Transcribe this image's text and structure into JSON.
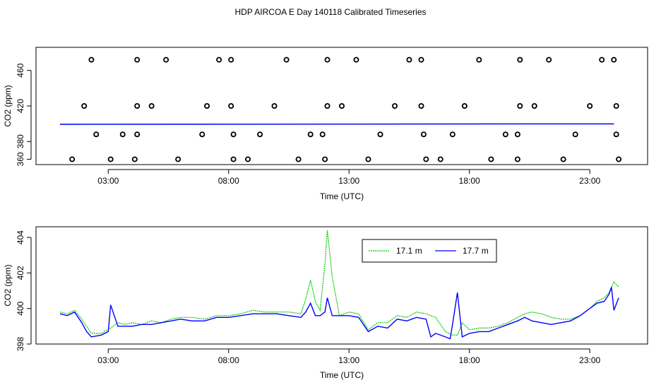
{
  "title": "HDP AIRCOA E  Day 140118  Calibrated Timeseries",
  "colors": {
    "series1": "#00c800",
    "series2": "#0000ff",
    "points": "#000000"
  },
  "chart_data": [
    {
      "type": "scatter",
      "xlabel": "Time (UTC)",
      "ylabel": "CO2 (ppm)",
      "x_ticks": [
        "03:00",
        "08:00",
        "13:00",
        "18:00",
        "23:00"
      ],
      "y_ticks": [
        "360",
        "380",
        "420",
        "460"
      ],
      "xlim": [
        0.0,
        25.4
      ],
      "ylim": [
        354,
        486
      ],
      "grid": false,
      "calibration_points": [
        {
          "x": 1.5,
          "y": 360
        },
        {
          "x": 2.3,
          "y": 472
        },
        {
          "x": 2.0,
          "y": 420
        },
        {
          "x": 2.5,
          "y": 388
        },
        {
          "x": 3.1,
          "y": 360
        },
        {
          "x": 3.6,
          "y": 388
        },
        {
          "x": 4.1,
          "y": 360
        },
        {
          "x": 4.2,
          "y": 388
        },
        {
          "x": 4.2,
          "y": 420
        },
        {
          "x": 4.2,
          "y": 472
        },
        {
          "x": 4.8,
          "y": 420
        },
        {
          "x": 5.4,
          "y": 472
        },
        {
          "x": 5.9,
          "y": 360
        },
        {
          "x": 6.9,
          "y": 388
        },
        {
          "x": 7.1,
          "y": 420
        },
        {
          "x": 7.6,
          "y": 472
        },
        {
          "x": 8.1,
          "y": 472
        },
        {
          "x": 8.1,
          "y": 420
        },
        {
          "x": 8.2,
          "y": 388
        },
        {
          "x": 8.2,
          "y": 360
        },
        {
          "x": 8.8,
          "y": 360
        },
        {
          "x": 9.3,
          "y": 388
        },
        {
          "x": 9.9,
          "y": 420
        },
        {
          "x": 10.4,
          "y": 472
        },
        {
          "x": 10.9,
          "y": 360
        },
        {
          "x": 11.4,
          "y": 388
        },
        {
          "x": 11.9,
          "y": 388
        },
        {
          "x": 12.0,
          "y": 360
        },
        {
          "x": 12.1,
          "y": 420
        },
        {
          "x": 12.1,
          "y": 472
        },
        {
          "x": 12.7,
          "y": 420
        },
        {
          "x": 13.3,
          "y": 472
        },
        {
          "x": 13.8,
          "y": 360
        },
        {
          "x": 14.3,
          "y": 388
        },
        {
          "x": 14.9,
          "y": 420
        },
        {
          "x": 15.5,
          "y": 472
        },
        {
          "x": 16.0,
          "y": 472
        },
        {
          "x": 16.0,
          "y": 420
        },
        {
          "x": 16.1,
          "y": 388
        },
        {
          "x": 16.2,
          "y": 360
        },
        {
          "x": 16.8,
          "y": 360
        },
        {
          "x": 17.3,
          "y": 388
        },
        {
          "x": 17.8,
          "y": 420
        },
        {
          "x": 18.4,
          "y": 472
        },
        {
          "x": 18.9,
          "y": 360
        },
        {
          "x": 19.5,
          "y": 388
        },
        {
          "x": 20.0,
          "y": 360
        },
        {
          "x": 20.0,
          "y": 388
        },
        {
          "x": 20.1,
          "y": 420
        },
        {
          "x": 20.1,
          "y": 472
        },
        {
          "x": 20.7,
          "y": 420
        },
        {
          "x": 21.3,
          "y": 472
        },
        {
          "x": 21.9,
          "y": 360
        },
        {
          "x": 22.4,
          "y": 388
        },
        {
          "x": 23.0,
          "y": 420
        },
        {
          "x": 23.5,
          "y": 472
        },
        {
          "x": 24.0,
          "y": 472
        },
        {
          "x": 24.1,
          "y": 420
        },
        {
          "x": 24.1,
          "y": 388
        },
        {
          "x": 24.2,
          "y": 360
        }
      ],
      "series": [
        {
          "color": "#00c800",
          "x": [
            1.0,
            24.0
          ],
          "y": [
            399.5,
            400.0
          ]
        },
        {
          "color": "#0000ff",
          "x": [
            1.0,
            24.0
          ],
          "y": [
            399.3,
            399.8
          ]
        }
      ]
    },
    {
      "type": "line",
      "xlabel": "Time (UTC)",
      "ylabel": "CO2 (ppm)",
      "x_ticks": [
        "03:00",
        "08:00",
        "13:00",
        "18:00",
        "23:00"
      ],
      "y_ticks": [
        "398",
        "400",
        "402",
        "404"
      ],
      "xlim": [
        0.0,
        25.4
      ],
      "ylim": [
        398.0,
        404.6
      ],
      "grid": false,
      "legend": {
        "position": "top-right",
        "entries": [
          "17.1 m",
          "17.7 m"
        ]
      },
      "series": [
        {
          "name": "17.1 m",
          "color": "#00c800",
          "x": [
            1.0,
            1.3,
            1.6,
            1.9,
            2.1,
            2.3,
            2.7,
            3.1,
            3.4,
            3.7,
            4.0,
            4.4,
            4.8,
            5.2,
            5.6,
            6.0,
            6.5,
            7.0,
            7.5,
            8.0,
            8.5,
            9.0,
            9.5,
            10.0,
            10.5,
            11.0,
            11.2,
            11.4,
            11.6,
            11.8,
            12.0,
            12.1,
            12.3,
            12.6,
            13.0,
            13.4,
            13.8,
            14.2,
            14.6,
            15.0,
            15.4,
            15.8,
            16.2,
            16.6,
            17.0,
            17.3,
            17.5,
            17.7,
            18.0,
            18.4,
            18.8,
            19.2,
            19.6,
            20.0,
            20.3,
            20.6,
            21.0,
            21.4,
            21.8,
            22.2,
            22.6,
            23.0,
            23.3,
            23.6,
            23.8,
            24.0,
            24.2
          ],
          "y": [
            399.8,
            399.7,
            399.9,
            399.4,
            399.0,
            398.6,
            398.6,
            398.9,
            399.2,
            399.1,
            399.2,
            399.1,
            399.3,
            399.2,
            399.4,
            399.5,
            399.5,
            399.4,
            399.6,
            399.6,
            399.7,
            399.9,
            399.8,
            399.8,
            399.8,
            399.7,
            400.5,
            401.6,
            400.4,
            399.9,
            402.5,
            404.4,
            401.8,
            399.6,
            399.8,
            399.7,
            398.8,
            399.2,
            399.2,
            399.6,
            399.5,
            399.8,
            399.7,
            399.5,
            398.7,
            398.5,
            398.5,
            399.2,
            398.8,
            398.9,
            398.9,
            399.0,
            399.2,
            399.5,
            399.7,
            399.8,
            399.7,
            399.5,
            399.4,
            399.4,
            399.6,
            400.0,
            400.4,
            400.6,
            400.9,
            401.5,
            401.2
          ]
        },
        {
          "name": "17.7 m",
          "color": "#0000ff",
          "x": [
            1.0,
            1.3,
            1.6,
            1.9,
            2.1,
            2.3,
            2.7,
            3.0,
            3.1,
            3.4,
            3.7,
            4.0,
            4.4,
            4.8,
            5.2,
            5.6,
            6.0,
            6.5,
            7.0,
            7.5,
            8.0,
            8.5,
            9.0,
            9.5,
            10.0,
            10.5,
            11.0,
            11.2,
            11.4,
            11.6,
            11.8,
            12.0,
            12.1,
            12.3,
            12.6,
            13.0,
            13.4,
            13.8,
            14.2,
            14.6,
            15.0,
            15.4,
            15.8,
            16.2,
            16.4,
            16.6,
            17.0,
            17.2,
            17.3,
            17.5,
            17.7,
            18.0,
            18.4,
            18.8,
            19.2,
            19.6,
            20.0,
            20.3,
            20.6,
            21.0,
            21.4,
            21.8,
            22.2,
            22.6,
            23.0,
            23.3,
            23.6,
            23.8,
            23.9,
            24.0,
            24.2
          ],
          "y": [
            399.7,
            399.6,
            399.8,
            399.2,
            398.7,
            398.4,
            398.5,
            398.7,
            400.2,
            399.0,
            399.0,
            399.0,
            399.1,
            399.1,
            399.2,
            399.3,
            399.4,
            399.3,
            399.3,
            399.5,
            399.5,
            399.6,
            399.7,
            399.7,
            399.7,
            399.6,
            399.5,
            399.8,
            400.3,
            399.6,
            399.6,
            399.8,
            400.6,
            399.6,
            399.6,
            399.6,
            399.5,
            398.7,
            399.0,
            398.9,
            399.4,
            399.3,
            399.5,
            399.4,
            398.4,
            398.6,
            398.4,
            398.3,
            399.1,
            400.9,
            398.4,
            398.6,
            398.7,
            398.7,
            398.9,
            399.1,
            399.3,
            399.5,
            399.3,
            399.2,
            399.1,
            399.2,
            399.3,
            399.6,
            400.0,
            400.3,
            400.4,
            400.8,
            401.2,
            399.9,
            400.6
          ]
        }
      ]
    }
  ]
}
